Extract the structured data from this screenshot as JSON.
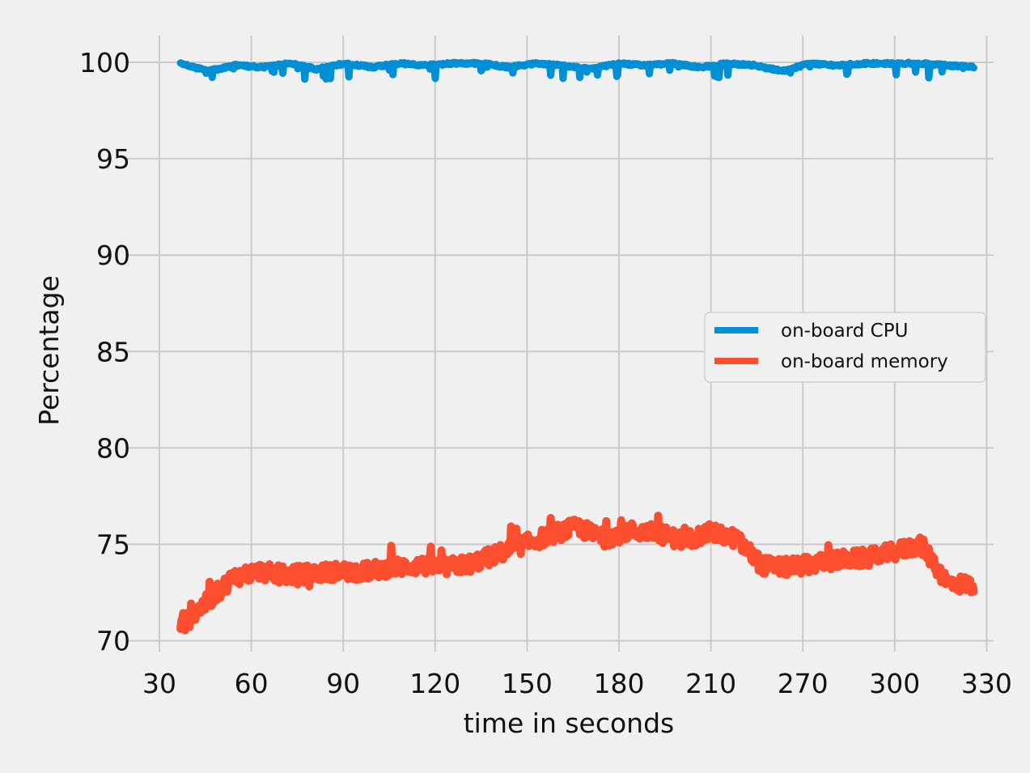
{
  "chart_data": {
    "type": "line",
    "xlabel": "time in seconds",
    "ylabel": "Percentage",
    "x_tick_labels": [
      "30",
      "60",
      "90",
      "120",
      "150",
      "180",
      "210",
      "270",
      "300",
      "330"
    ],
    "y_ticks": [
      70,
      75,
      80,
      85,
      90,
      95,
      100
    ],
    "x_range_tick_index": [
      0,
      9
    ],
    "x_data_range_tick_index": [
      0.23,
      8.86
    ],
    "ylim": [
      69.5,
      101.3
    ],
    "grid": true,
    "legend": {
      "placement": "center-right"
    },
    "series": [
      {
        "name": "on-board CPU",
        "color": "#008fd5",
        "anchors_y": [
          100.0,
          99.6,
          99.9,
          99.8,
          100.0,
          99.7,
          100.0,
          99.8,
          100.0,
          99.9,
          100.0,
          100.0,
          99.8,
          100.0,
          99.9,
          99.7,
          100.0,
          99.9,
          100.0,
          99.8,
          100.0,
          99.9,
          99.6,
          100.0,
          99.9,
          100.0,
          100.0,
          100.0,
          99.9,
          99.8
        ],
        "noise": 0.45
      },
      {
        "name": "on-board memory",
        "color": "#fc4f30",
        "anchors_y": [
          70.7,
          72.0,
          73.3,
          73.6,
          73.4,
          73.5,
          73.6,
          73.6,
          73.8,
          73.9,
          73.8,
          74.0,
          74.5,
          75.0,
          75.5,
          75.9,
          75.3,
          75.7,
          75.6,
          75.2,
          75.6,
          75.3,
          73.9,
          73.8,
          74.0,
          74.2,
          74.3,
          74.6,
          75.0,
          73.0,
          72.9
        ],
        "noise": 0.9
      }
    ]
  }
}
